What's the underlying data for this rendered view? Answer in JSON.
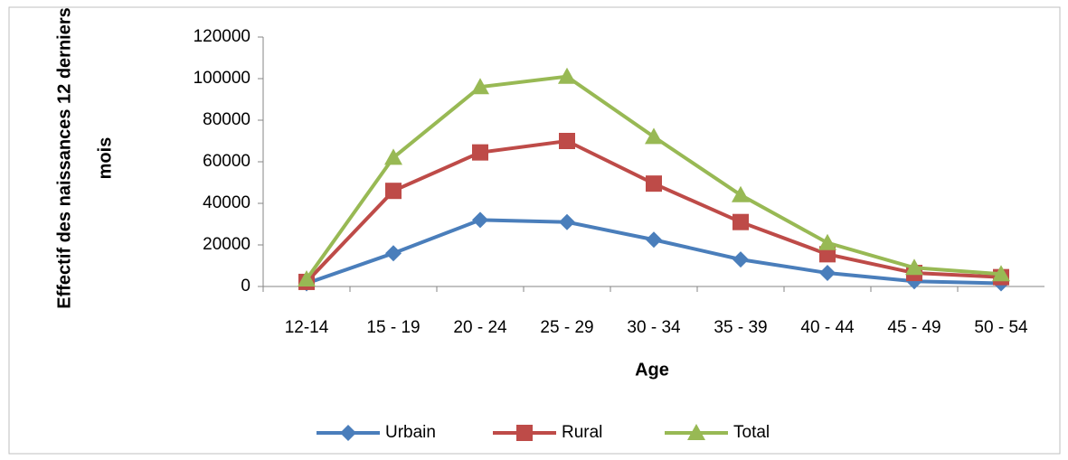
{
  "chart_data": {
    "type": "line",
    "ylabel_lines": [
      "Effectif des naissances  12 derniers",
      "mois"
    ],
    "xlabel": "Age",
    "categories": [
      "12-14",
      "15 - 19",
      "20 - 24",
      "25 - 29",
      "30 - 34",
      "35 - 39",
      "40 - 44",
      "45 - 49",
      "50 - 54"
    ],
    "series": [
      {
        "name": "Urbain",
        "color": "#4a7ebb",
        "marker": "diamond",
        "values": [
          1500,
          16000,
          32000,
          31000,
          22500,
          13000,
          6500,
          2500,
          1500
        ]
      },
      {
        "name": "Rural",
        "color": "#be4b48",
        "marker": "square",
        "values": [
          2200,
          46000,
          64500,
          70000,
          49500,
          31000,
          15500,
          6500,
          4500
        ]
      },
      {
        "name": "Total",
        "color": "#98b954",
        "marker": "triangle",
        "values": [
          3500,
          62000,
          96000,
          101000,
          72000,
          44000,
          21000,
          9000,
          6000
        ]
      }
    ],
    "ylim": [
      0,
      120000
    ],
    "yticks": [
      0,
      20000,
      40000,
      60000,
      80000,
      100000,
      120000
    ],
    "legend": "bottom"
  }
}
